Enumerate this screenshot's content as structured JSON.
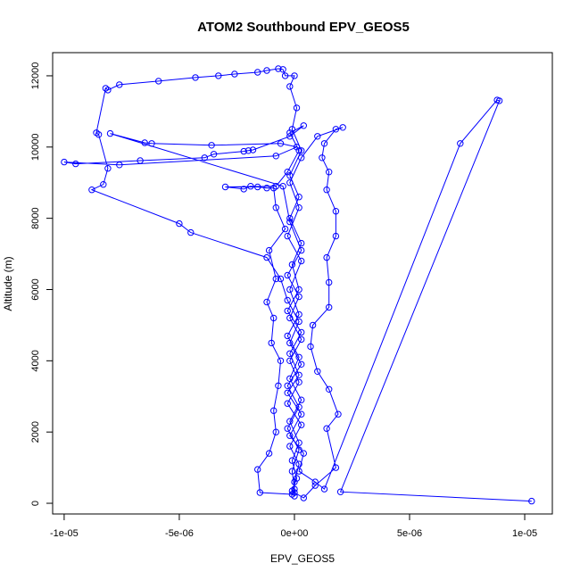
{
  "chart_data": {
    "type": "scatter",
    "title": "ATOM2 Southbound EPV_GEOS5",
    "xlabel": "EPV_GEOS5",
    "ylabel": "Altitude (m)",
    "xlim": [
      -1.05e-05,
      1.12e-05
    ],
    "ylim": [
      -300,
      12650
    ],
    "x_ticks": [
      -1e-05,
      -5e-06,
      0,
      5e-06,
      1e-05
    ],
    "x_tick_labels": [
      "-1e-05",
      "-5e-06",
      "0e+00",
      "5e-06",
      "1e-05"
    ],
    "y_ticks": [
      0,
      2000,
      4000,
      6000,
      8000,
      10000,
      12000
    ],
    "y_tick_labels": [
      "0",
      "2000",
      "4000",
      "6000",
      "8000",
      "10000",
      "12000"
    ],
    "series": [
      {
        "color": "#0000ff",
        "marker": "open-circle",
        "line": true,
        "points": [
          [
            1.03e-05,
            60
          ],
          [
            2e-06,
            320
          ],
          [
            8.9e-06,
            11300
          ],
          [
            8.8e-06,
            11320
          ],
          [
            7.2e-06,
            10100
          ],
          [
            1.3e-06,
            400
          ],
          [
            9e-07,
            600
          ],
          [
            2e-07,
            900
          ],
          [
            4e-07,
            1400
          ],
          [
            -2e-07,
            1900
          ],
          [
            3e-07,
            2500
          ],
          [
            -3e-07,
            3100
          ],
          [
            2e-07,
            3600
          ],
          [
            -2e-07,
            4200
          ],
          [
            3e-07,
            4800
          ],
          [
            -3e-07,
            5400
          ],
          [
            2e-07,
            6000
          ],
          [
            -1e-07,
            6700
          ],
          [
            3e-07,
            7300
          ],
          [
            -2e-07,
            8000
          ],
          [
            2e-07,
            8600
          ],
          [
            -2e-07,
            9200
          ],
          [
            3e-07,
            9900
          ],
          [
            -1e-07,
            10500
          ],
          [
            1e-07,
            11100
          ],
          [
            -2e-07,
            11700
          ],
          [
            0,
            12000
          ],
          [
            -4e-07,
            12000
          ],
          [
            -5e-07,
            12180
          ],
          [
            -7e-07,
            12200
          ],
          [
            -1.2e-06,
            12150
          ],
          [
            -1.6e-06,
            12100
          ],
          [
            -2.6e-06,
            12050
          ],
          [
            -3.3e-06,
            12000
          ],
          [
            -4.3e-06,
            11950
          ],
          [
            -5.9e-06,
            11850
          ],
          [
            -7.6e-06,
            11750
          ],
          [
            -8.1e-06,
            11600
          ],
          [
            -8.2e-06,
            11650
          ],
          [
            -8.6e-06,
            10400
          ],
          [
            -8.5e-06,
            10350
          ],
          [
            -8.1e-06,
            9400
          ],
          [
            -8.3e-06,
            8950
          ],
          [
            -8.8e-06,
            8800
          ],
          [
            -5e-06,
            7850
          ],
          [
            -4.5e-06,
            7600
          ],
          [
            -1.2e-06,
            6900
          ],
          [
            -6e-07,
            6300
          ],
          [
            -3e-07,
            5700
          ],
          [
            2e-07,
            5100
          ],
          [
            -2e-07,
            4500
          ],
          [
            3e-07,
            3900
          ],
          [
            -3e-07,
            3300
          ],
          [
            2e-07,
            2700
          ],
          [
            -3e-07,
            2100
          ],
          [
            2e-07,
            1500
          ],
          [
            -1e-07,
            900
          ],
          [
            0,
            400
          ],
          [
            -1e-07,
            250
          ],
          [
            -1.5e-06,
            300
          ],
          [
            -1.6e-06,
            950
          ],
          [
            -1.1e-06,
            1400
          ],
          [
            -8e-07,
            2000
          ],
          [
            -9e-07,
            2600
          ],
          [
            -7e-07,
            3300
          ],
          [
            -6e-07,
            4000
          ],
          [
            -1e-06,
            4500
          ],
          [
            -9e-07,
            5200
          ],
          [
            -1.2e-06,
            5650
          ],
          [
            -8e-07,
            6300
          ],
          [
            -1.1e-06,
            7100
          ],
          [
            -4e-07,
            7700
          ],
          [
            -8e-07,
            8300
          ],
          [
            -9e-07,
            8850
          ],
          [
            -1.2e-06,
            8850
          ],
          [
            -1.6e-06,
            8880
          ],
          [
            -1.9e-06,
            8900
          ],
          [
            -2.2e-06,
            8820
          ],
          [
            -3e-06,
            8880
          ],
          [
            -8e-07,
            8900
          ],
          [
            -3e-07,
            9300
          ],
          [
            2e-07,
            9900
          ],
          [
            -2e-07,
            10400
          ],
          [
            4e-07,
            10600
          ],
          [
            -2e-07,
            10300
          ],
          [
            -1.8e-06,
            9920
          ],
          [
            -2e-06,
            9900
          ],
          [
            -2.2e-06,
            9880
          ],
          [
            -3.5e-06,
            9800
          ],
          [
            -3.9e-06,
            9700
          ],
          [
            -6.7e-06,
            9620
          ],
          [
            -9.5e-06,
            9530
          ],
          [
            -1e-05,
            9580
          ],
          [
            -7.6e-06,
            9500
          ],
          [
            -8e-07,
            9750
          ],
          [
            1e-07,
            10000
          ],
          [
            -6e-07,
            10100
          ],
          [
            -3.6e-06,
            10050
          ],
          [
            -6.2e-06,
            10100
          ],
          [
            -6.5e-06,
            10120
          ],
          [
            -8e-06,
            10380
          ],
          [
            -5e-07,
            8900
          ],
          [
            -2e-07,
            7900
          ],
          [
            3e-07,
            7100
          ],
          [
            -3e-07,
            6400
          ],
          [
            2e-07,
            5800
          ],
          [
            -2e-07,
            5200
          ],
          [
            3e-07,
            4600
          ],
          [
            -2e-07,
            4000
          ],
          [
            2e-07,
            3400
          ],
          [
            -3e-07,
            2800
          ],
          [
            3e-07,
            2200
          ],
          [
            -2e-07,
            1600
          ],
          [
            2e-07,
            1100
          ],
          [
            0,
            600
          ],
          [
            0,
            300
          ],
          [
            4e-07,
            150
          ],
          [
            9e-07,
            500
          ],
          [
            1.8e-06,
            1000
          ],
          [
            1.4e-06,
            2100
          ],
          [
            1.9e-06,
            2500
          ],
          [
            1.5e-06,
            3200
          ],
          [
            1e-06,
            3700
          ],
          [
            7e-07,
            4400
          ],
          [
            8e-07,
            5000
          ],
          [
            1.5e-06,
            5500
          ],
          [
            1.5e-06,
            6200
          ],
          [
            1.4e-06,
            6900
          ],
          [
            1.8e-06,
            7500
          ],
          [
            1.8e-06,
            8200
          ],
          [
            1.4e-06,
            8800
          ],
          [
            1.5e-06,
            9300
          ],
          [
            1.2e-06,
            9700
          ],
          [
            1.3e-06,
            10100
          ],
          [
            1.8e-06,
            10500
          ],
          [
            2.1e-06,
            10550
          ],
          [
            1e-06,
            10300
          ],
          [
            3e-07,
            9700
          ],
          [
            -2e-07,
            9000
          ],
          [
            2e-07,
            8300
          ],
          [
            -3e-07,
            7500
          ],
          [
            3e-07,
            6800
          ],
          [
            -2e-07,
            6000
          ],
          [
            2e-07,
            5300
          ],
          [
            -3e-07,
            4700
          ],
          [
            2e-07,
            4100
          ],
          [
            -2e-07,
            3500
          ],
          [
            3e-07,
            2900
          ],
          [
            -2e-07,
            2300
          ],
          [
            2e-07,
            1700
          ],
          [
            -1e-07,
            1200
          ],
          [
            1e-07,
            700
          ],
          [
            -1e-07,
            350
          ],
          [
            0,
            200
          ]
        ]
      }
    ]
  }
}
